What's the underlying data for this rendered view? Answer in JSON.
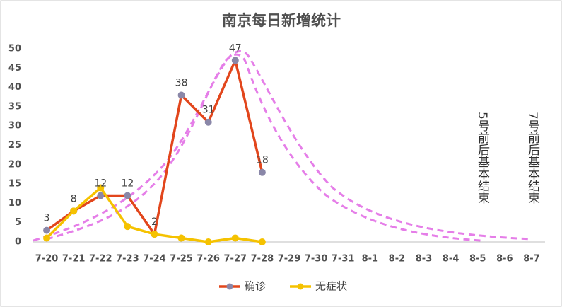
{
  "chart_data": {
    "type": "line",
    "title": "南京每日新增统计",
    "categories": [
      "7-20",
      "7-21",
      "7-22",
      "7-23",
      "7-24",
      "7-25",
      "7-26",
      "7-27",
      "7-28",
      "7-29",
      "7-30",
      "7-31",
      "8-1",
      "8-2",
      "8-3",
      "8-4",
      "8-5",
      "8-6",
      "8-7"
    ],
    "series": [
      {
        "name": "确诊",
        "color": "#e2461c",
        "marker_color": "#8a87a8",
        "values": [
          3,
          8,
          12,
          12,
          2,
          38,
          31,
          47,
          18,
          null,
          null,
          null,
          null,
          null,
          null,
          null,
          null,
          null,
          null
        ],
        "data_labels": true
      },
      {
        "name": "无症状",
        "color": "#f5c200",
        "marker_color": "#f5c200",
        "values": [
          1,
          8,
          14,
          4,
          2,
          1,
          0,
          1,
          0,
          null,
          null,
          null,
          null,
          null,
          null,
          null,
          null,
          null,
          null
        ],
        "data_labels": false
      }
    ],
    "ylim": [
      0,
      50
    ],
    "yticks": [
      0,
      5,
      10,
      15,
      20,
      25,
      30,
      35,
      40,
      45,
      50
    ],
    "grid": false,
    "legend": "bottom",
    "annotations": [
      "5号前后基本结束",
      "7号前后基本结束"
    ]
  }
}
